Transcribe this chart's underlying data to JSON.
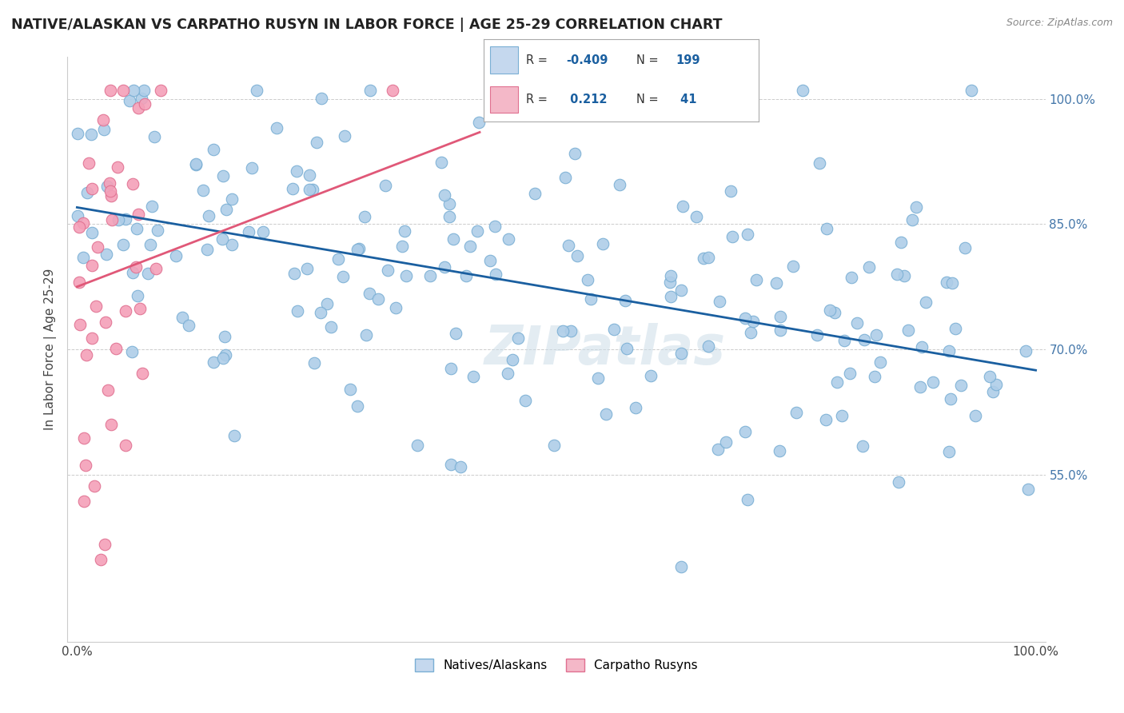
{
  "title": "NATIVE/ALASKAN VS CARPATHO RUSYN IN LABOR FORCE | AGE 25-29 CORRELATION CHART",
  "source": "Source: ZipAtlas.com",
  "ylabel": "In Labor Force | Age 25-29",
  "blue_R": -0.409,
  "blue_N": 199,
  "pink_R": 0.212,
  "pink_N": 41,
  "blue_color": "#aecde8",
  "blue_edge": "#7aafd4",
  "pink_color": "#f4a0b8",
  "pink_edge": "#e07090",
  "blue_line_color": "#1a5fa0",
  "pink_line_color": "#e05878",
  "legend_box_blue": "#c5d8ee",
  "legend_box_pink": "#f4b8c8",
  "watermark": "ZIPatlas",
  "ytick_values": [
    0.55,
    0.7,
    0.85,
    1.0
  ],
  "ytick_labels": [
    "55.0%",
    "70.0%",
    "85.0%",
    "100.0%"
  ],
  "xtick_values": [
    0.0,
    1.0
  ],
  "xtick_labels": [
    "0.0%",
    "100.0%"
  ],
  "xmin": 0.0,
  "xmax": 1.0,
  "ymin": 0.35,
  "ymax": 1.05,
  "blue_line_x0": 0.0,
  "blue_line_x1": 1.0,
  "blue_line_y0": 0.87,
  "blue_line_y1": 0.675,
  "pink_line_x0": 0.0,
  "pink_line_x1": 0.42,
  "pink_line_y0": 0.775,
  "pink_line_y1": 0.96
}
